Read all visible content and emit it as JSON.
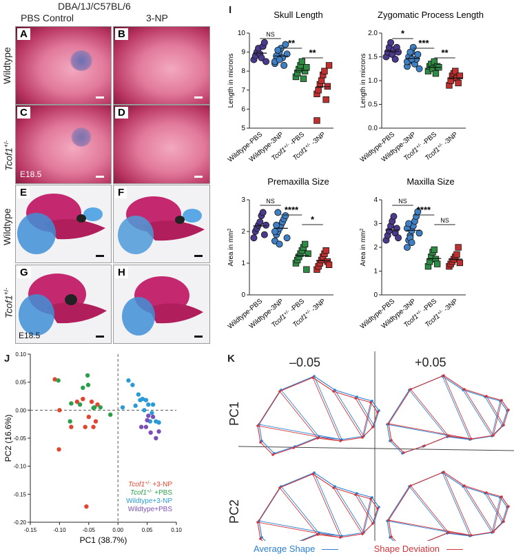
{
  "header": {
    "strain": "DBA/1J/C57BL/6",
    "col_pbs": "PBS Control",
    "col_3np": "3-NP"
  },
  "rows": {
    "wildtype": "Wildtype",
    "tcof1": "Tcof1",
    "tcof1_sup": "+/-"
  },
  "panel_labels": {
    "a": "A",
    "b": "B",
    "c": "C",
    "d": "D",
    "e": "E",
    "f": "F",
    "g": "G",
    "h": "H",
    "i": "I",
    "j": "J",
    "k": "K"
  },
  "age_labels": {
    "c": "E18.5",
    "g": "E18.5"
  },
  "groups": [
    "Wildtype-PBS",
    "Wildtype-3NP",
    "Tcof1+/- -PBS",
    "Tcof1+/- -3NP"
  ],
  "group_colors": [
    "#4b3a8c",
    "#3f7fc4",
    "#2f8c45",
    "#c0302e"
  ],
  "plots": [
    {
      "title": "Skull Length",
      "ylabel": "Length in microns",
      "ylim": [
        5,
        10
      ],
      "ticks": [
        5,
        6,
        7,
        8,
        9,
        10
      ],
      "sig": [
        "NS",
        "**",
        "**"
      ],
      "series": [
        [
          8.6,
          8.8,
          9.0,
          9.2,
          8.9,
          8.7,
          9.3,
          9.5,
          8.5
        ],
        [
          8.4,
          8.6,
          8.8,
          9.0,
          9.2,
          8.7,
          8.3,
          9.4,
          8.9,
          8.5,
          8.8,
          9.1,
          8.6
        ],
        [
          7.7,
          7.9,
          8.1,
          8.3,
          8.5,
          7.6,
          8.0,
          8.2
        ],
        [
          6.8,
          7.0,
          7.3,
          7.5,
          7.8,
          8.0,
          6.5,
          7.2,
          8.3,
          5.4
        ]
      ]
    },
    {
      "title": "Zygomatic Process Length",
      "ylabel": "Length in microns",
      "ylim": [
        0,
        2.0
      ],
      "ticks": [
        0,
        0.5,
        1.0,
        1.5,
        2.0
      ],
      "sig": [
        "*",
        "***",
        "**"
      ],
      "series": [
        [
          1.5,
          1.6,
          1.7,
          1.8,
          1.55,
          1.65,
          1.45,
          1.7,
          1.6
        ],
        [
          1.3,
          1.4,
          1.5,
          1.6,
          1.7,
          1.35,
          1.45,
          1.55,
          1.25,
          1.4,
          1.5,
          1.6,
          1.45
        ],
        [
          1.2,
          1.3,
          1.35,
          1.25,
          1.4,
          1.15,
          1.3,
          1.28
        ],
        [
          0.9,
          1.0,
          1.1,
          1.15,
          1.2,
          1.05,
          0.95,
          1.1
        ]
      ]
    },
    {
      "title": "Premaxilla Size",
      "ylabel": "Area in mm2",
      "ylim": [
        0,
        3
      ],
      "ticks": [
        0,
        1,
        2,
        3
      ],
      "sig": [
        "NS",
        "****",
        "*"
      ],
      "series": [
        [
          1.8,
          2.0,
          2.1,
          2.2,
          2.3,
          2.5,
          2.6,
          1.9,
          2.2
        ],
        [
          1.7,
          1.9,
          2.0,
          2.1,
          2.2,
          2.3,
          2.4,
          2.5,
          1.8,
          2.0,
          2.2,
          2.6,
          1.6
        ],
        [
          1.0,
          1.1,
          1.2,
          1.3,
          1.4,
          1.5,
          1.6,
          0.8,
          1.3
        ],
        [
          0.8,
          0.9,
          1.0,
          1.1,
          1.2,
          1.3,
          1.4,
          1.05,
          0.95
        ]
      ]
    },
    {
      "title": "Maxilla Size",
      "ylabel": "Area in mm2",
      "ylim": [
        0,
        4
      ],
      "ticks": [
        0,
        1,
        2,
        3,
        4
      ],
      "sig": [
        "NS",
        "****",
        "NS"
      ],
      "series": [
        [
          2.3,
          2.5,
          2.7,
          2.9,
          3.1,
          3.3,
          2.6,
          2.8,
          2.4
        ],
        [
          2.0,
          2.3,
          2.5,
          2.7,
          2.9,
          3.1,
          3.3,
          3.5,
          2.6,
          2.8,
          3.0,
          2.4,
          2.2
        ],
        [
          1.2,
          1.4,
          1.6,
          1.8,
          1.9,
          1.5,
          1.3
        ],
        [
          1.2,
          1.3,
          1.4,
          1.5,
          1.6,
          1.7,
          2.0,
          1.35
        ]
      ]
    }
  ],
  "pca": {
    "xlabel": "PC1 (38.7%)",
    "ylabel": "PC2 (16.6%)",
    "xlim": [
      -0.15,
      0.1
    ],
    "ylim": [
      -0.2,
      0.1
    ],
    "xticks": [
      "-0.15",
      "-0.10",
      "-0.05",
      "0.00",
      "0.05",
      "0.10"
    ],
    "yticks": [
      "-0.20",
      "-0.15",
      "-0.10",
      "-0.05",
      "0.00",
      "0.05",
      "0.10"
    ],
    "legend": [
      {
        "name": "Tcof1+/- +3-NP",
        "color": "#e0462f"
      },
      {
        "name": "Tcof1+/- +PBS",
        "color": "#2aa04a"
      },
      {
        "name": "Wildtype+3-NP",
        "color": "#2a9bd6"
      },
      {
        "name": "Wildtype+PBS",
        "color": "#7b4fb8"
      }
    ],
    "points": {
      "red": [
        [
          -0.108,
          0.055
        ],
        [
          -0.1,
          0.0
        ],
        [
          -0.101,
          -0.07
        ],
        [
          -0.06,
          0.02
        ],
        [
          -0.045,
          0.015
        ],
        [
          -0.035,
          0.01
        ],
        [
          -0.056,
          -0.03
        ],
        [
          -0.08,
          -0.03
        ],
        [
          -0.05,
          -0.012
        ],
        [
          -0.038,
          -0.02
        ],
        [
          -0.042,
          -0.03
        ],
        [
          -0.07,
          0.015
        ],
        [
          -0.054,
          -0.172
        ]
      ],
      "green": [
        [
          -0.102,
          0.053
        ],
        [
          -0.08,
          0.012
        ],
        [
          -0.052,
          0.062
        ],
        [
          -0.051,
          0.045
        ],
        [
          -0.04,
          0.005
        ],
        [
          -0.06,
          0.04
        ],
        [
          -0.065,
          0.01
        ],
        [
          -0.03,
          0.005
        ],
        [
          -0.082,
          -0.02
        ],
        [
          -0.013,
          -0.008
        ],
        [
          -0.042,
          0.004
        ]
      ],
      "blue": [
        [
          0.018,
          0.053
        ],
        [
          0.025,
          0.045
        ],
        [
          0.03,
          0.008
        ],
        [
          0.038,
          0.018
        ],
        [
          0.042,
          0.02
        ],
        [
          0.048,
          0.018
        ],
        [
          0.052,
          0.01
        ],
        [
          0.058,
          -0.005
        ],
        [
          0.055,
          -0.02
        ],
        [
          0.065,
          -0.02
        ],
        [
          0.07,
          -0.022
        ],
        [
          0.045,
          0.0
        ],
        [
          0.008,
          0.005
        ],
        [
          0.06,
          0.01
        ],
        [
          0.035,
          0.028
        ]
      ],
      "purple": [
        [
          0.04,
          -0.03
        ],
        [
          0.048,
          -0.03
        ],
        [
          0.05,
          -0.018
        ],
        [
          0.06,
          -0.012
        ],
        [
          0.056,
          -0.04
        ],
        [
          0.065,
          -0.05
        ],
        [
          0.07,
          -0.038
        ],
        [
          0.052,
          -0.01
        ]
      ]
    }
  },
  "panel_k": {
    "col_neg": "–0.05",
    "col_pos": "+0.05",
    "row_pc1": "PC1",
    "row_pc2": "PC2",
    "avg_label": "Average Shape",
    "dev_label": "Shape Deviation",
    "avg_color": "#2a7fd4",
    "dev_color": "#d0343a"
  }
}
